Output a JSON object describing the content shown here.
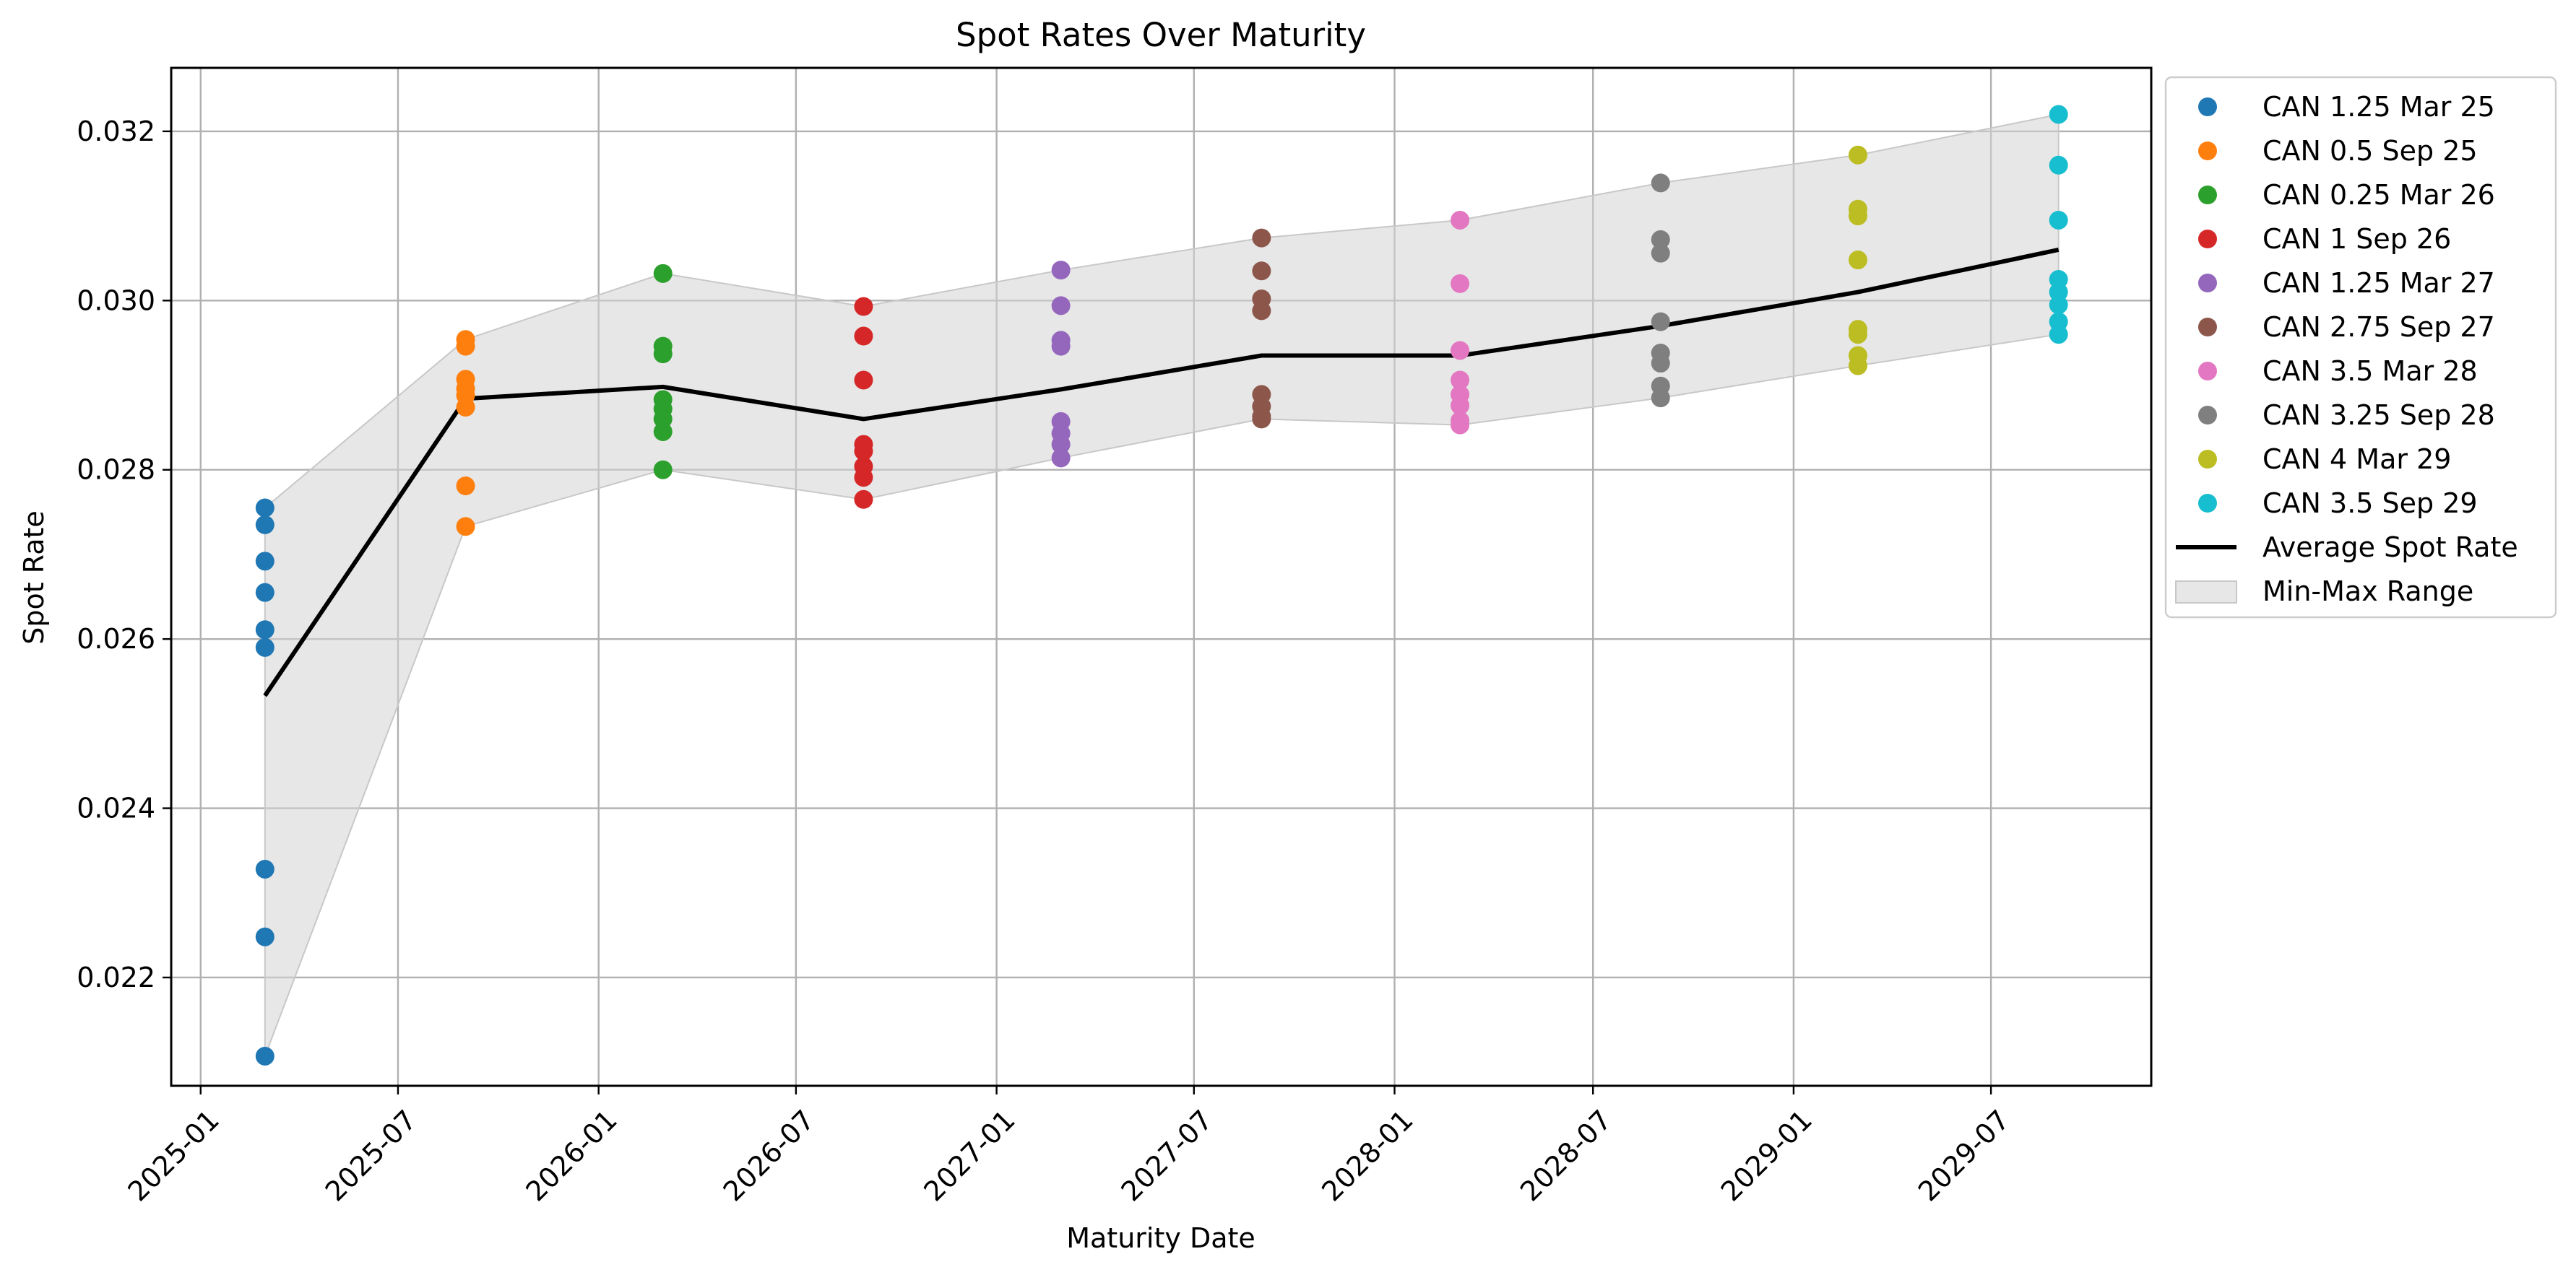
{
  "chart_data": {
    "type": "scatter",
    "title": "Spot Rates Over Maturity",
    "xlabel": "Maturity Date",
    "ylabel": "Spot Rate",
    "xlim": [
      "2024-12-05",
      "2029-11-25"
    ],
    "ylim": [
      0.02072,
      0.03275
    ],
    "x_ticks": [
      "2025-01",
      "2025-07",
      "2026-01",
      "2026-07",
      "2027-01",
      "2027-07",
      "2028-01",
      "2028-07",
      "2029-01",
      "2029-07"
    ],
    "x_tick_dates": [
      "2025-01-01",
      "2025-07-01",
      "2026-01-01",
      "2026-07-01",
      "2027-01-01",
      "2027-07-01",
      "2028-01-01",
      "2028-07-01",
      "2029-01-01",
      "2029-07-01"
    ],
    "y_ticks": [
      0.022,
      0.024,
      0.026,
      0.028,
      0.03,
      0.032
    ],
    "y_tick_labels": [
      "0.022",
      "0.024",
      "0.026",
      "0.028",
      "0.030",
      "0.032"
    ],
    "grid": true,
    "legend_position": "outside right, top",
    "series": [
      {
        "name": "CAN 1.25 Mar 25",
        "color": "#1f77b4",
        "date": "2025-03-01",
        "values": [
          0.02755,
          0.02735,
          0.02692,
          0.02655,
          0.02611,
          0.0259,
          0.02328,
          0.02248,
          0.02107
        ]
      },
      {
        "name": "CAN 0.5 Sep 25",
        "color": "#ff7f0e",
        "date": "2025-09-01",
        "values": [
          0.02954,
          0.02946,
          0.02907,
          0.02896,
          0.02888,
          0.02874,
          0.02781,
          0.02733
        ]
      },
      {
        "name": "CAN 0.25 Mar 26",
        "color": "#2ca02c",
        "date": "2026-03-01",
        "values": [
          0.03032,
          0.02946,
          0.02937,
          0.02883,
          0.02872,
          0.0286,
          0.02845,
          0.028
        ]
      },
      {
        "name": "CAN 1 Sep 26",
        "color": "#d62728",
        "date": "2026-09-01",
        "values": [
          0.02993,
          0.02958,
          0.02906,
          0.0283,
          0.02822,
          0.02804,
          0.02791,
          0.02765
        ]
      },
      {
        "name": "CAN 1.25 Mar 27",
        "color": "#9467bd",
        "date": "2027-03-01",
        "values": [
          0.03036,
          0.02994,
          0.02953,
          0.02946,
          0.02857,
          0.02843,
          0.0283,
          0.02814
        ]
      },
      {
        "name": "CAN 2.75 Sep 27",
        "color": "#8c564b",
        "date": "2027-09-01",
        "values": [
          0.03074,
          0.03035,
          0.03002,
          0.02988,
          0.02889,
          0.02875,
          0.02863,
          0.0286
        ]
      },
      {
        "name": "CAN 3.5 Mar 28",
        "color": "#e377c2",
        "date": "2028-03-01",
        "values": [
          0.03095,
          0.0302,
          0.02941,
          0.02906,
          0.02889,
          0.02876,
          0.02858,
          0.02853
        ]
      },
      {
        "name": "CAN 3.25 Sep 28",
        "color": "#7f7f7f",
        "date": "2028-09-01",
        "values": [
          0.03139,
          0.03072,
          0.03056,
          0.02975,
          0.02938,
          0.02926,
          0.02899,
          0.02885
        ]
      },
      {
        "name": "CAN 4 Mar 29",
        "color": "#bcbd22",
        "date": "2029-03-01",
        "values": [
          0.03172,
          0.03108,
          0.031,
          0.03048,
          0.02966,
          0.0296,
          0.02935,
          0.02923
        ]
      },
      {
        "name": "CAN 3.5 Sep 29",
        "color": "#17becf",
        "date": "2029-09-01",
        "values": [
          0.0322,
          0.0316,
          0.03095,
          0.03025,
          0.0301,
          0.02995,
          0.02975,
          0.0296
        ]
      }
    ],
    "average": {
      "name": "Average Spot Rate",
      "color": "#000000",
      "dates": [
        "2025-03-01",
        "2025-09-01",
        "2026-03-01",
        "2026-09-01",
        "2027-03-01",
        "2027-09-01",
        "2028-03-01",
        "2028-09-01",
        "2029-03-01",
        "2029-09-01"
      ],
      "values": [
        0.02533,
        0.02884,
        0.02898,
        0.0286,
        0.02895,
        0.02935,
        0.02935,
        0.0297,
        0.0301,
        0.0306
      ]
    },
    "range": {
      "name": "Min-Max Range",
      "color": "#d3d3d3",
      "min": [
        0.02107,
        0.02733,
        0.028,
        0.02765,
        0.02814,
        0.0286,
        0.02853,
        0.02885,
        0.02923,
        0.0296
      ],
      "max": [
        0.02755,
        0.02954,
        0.03032,
        0.02993,
        0.03036,
        0.03074,
        0.03095,
        0.03139,
        0.03172,
        0.0322
      ]
    }
  }
}
